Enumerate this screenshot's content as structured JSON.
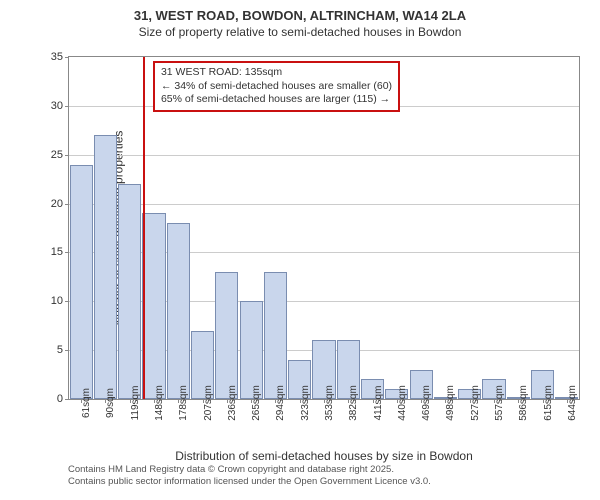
{
  "chart": {
    "type": "histogram",
    "title": "31, WEST ROAD, BOWDON, ALTRINCHAM, WA14 2LA",
    "subtitle": "Size of property relative to semi-detached houses in Bowdon",
    "ylabel": "Number of semi-detached properties",
    "xlabel": "Distribution of semi-detached houses by size in Bowdon",
    "ylim": [
      0,
      35
    ],
    "ytick_step": 5,
    "yticks": [
      0,
      5,
      10,
      15,
      20,
      25,
      30,
      35
    ],
    "categories": [
      "61sqm",
      "90sqm",
      "119sqm",
      "148sqm",
      "178sqm",
      "207sqm",
      "236sqm",
      "265sqm",
      "294sqm",
      "323sqm",
      "353sqm",
      "382sqm",
      "411sqm",
      "440sqm",
      "469sqm",
      "498sqm",
      "527sqm",
      "557sqm",
      "586sqm",
      "615sqm",
      "644sqm"
    ],
    "values": [
      24,
      27,
      22,
      19,
      18,
      7,
      13,
      10,
      13,
      4,
      6,
      6,
      2,
      1,
      3,
      0,
      1,
      2,
      0,
      3,
      0
    ],
    "bar_color": "#c9d6ec",
    "bar_border_color": "#7a8db0",
    "background_color": "#ffffff",
    "grid_color": "#cccccc",
    "axis_color": "#888888",
    "bar_width": 0.95,
    "title_fontsize": 13,
    "subtitle_fontsize": 12,
    "label_fontsize": 12,
    "tick_fontsize": 11,
    "marker": {
      "position_sqm": 135,
      "color": "#c91010",
      "label_line1": "31 WEST ROAD: 135sqm",
      "label_line2": "← 34% of semi-detached houses are smaller (60)",
      "label_line3": "65% of semi-detached houses are larger (115) →"
    },
    "footer_line1": "Contains HM Land Registry data © Crown copyright and database right 2025.",
    "footer_line2": "Contains public sector information licensed under the Open Government Licence v3.0."
  }
}
